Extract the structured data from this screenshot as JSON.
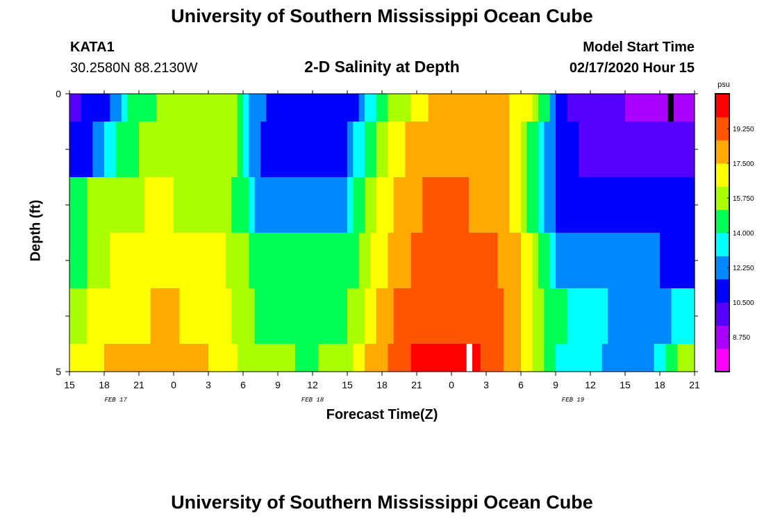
{
  "page": {
    "title_top": "University of Southern Mississippi Ocean Cube",
    "title_bottom": "University of Southern Mississippi Ocean Cube",
    "station": "KATA1",
    "coords": "30.2580N 88.2130W",
    "model_start_label": "Model Start Time",
    "model_start_value": "02/17/2020 Hour 15"
  },
  "colors": {
    "scale": [
      "#ff00ff",
      "#aa00ff",
      "#5500ff",
      "#0000ff",
      "#0088ff",
      "#00ffff",
      "#00ff55",
      "#aaff00",
      "#ffff00",
      "#ffaa00",
      "#ff5500",
      "#ff0000"
    ]
  },
  "chart_data": {
    "type": "heatmap",
    "title": "2-D Salinity at Depth",
    "xlabel": "Forecast Time(Z)",
    "ylabel": "Depth (ft)",
    "x_range": [
      0,
      54
    ],
    "y_range": [
      0,
      5
    ],
    "x_tick_labels": [
      "15",
      "18",
      "21",
      "0",
      "3",
      "6",
      "9",
      "12",
      "15",
      "18",
      "21",
      "0",
      "3",
      "6",
      "9",
      "12",
      "15",
      "18",
      "21"
    ],
    "date_labels": [
      {
        "text": "FEB 17",
        "x": 4
      },
      {
        "text": "FEB 18",
        "x": 21
      },
      {
        "text": "FEB 19",
        "x": 43.5
      }
    ],
    "y_tick_labels": [
      "0",
      "",
      "",
      "",
      "",
      "5"
    ],
    "colorbar": {
      "unit": "psu",
      "min": 7.0,
      "max": 21.0,
      "tick_labels": [
        "19.250",
        "17.500",
        "15.750",
        "14.000",
        "12.250",
        "10.500",
        "8.750"
      ],
      "ticks": [
        19.25,
        17.5,
        15.75,
        14.0,
        12.25,
        10.5,
        8.75
      ]
    },
    "rows": [
      {
        "depth": "0.0-0.5",
        "knots": [
          [
            0,
            10.3
          ],
          [
            3,
            11.0
          ],
          [
            4,
            12.0
          ],
          [
            5,
            13.8
          ],
          [
            6,
            14.8
          ],
          [
            8,
            15.3
          ],
          [
            14,
            15.5
          ],
          [
            15,
            14.5
          ],
          [
            16,
            12.2
          ],
          [
            18,
            11.0
          ],
          [
            24,
            10.5
          ],
          [
            25,
            11.8
          ],
          [
            26,
            13.2
          ],
          [
            27,
            14.8
          ],
          [
            29,
            15.8
          ],
          [
            31,
            17.5
          ],
          [
            33,
            18.3
          ],
          [
            36,
            18.2
          ],
          [
            38,
            17.5
          ],
          [
            40,
            16.2
          ],
          [
            41,
            14.5
          ],
          [
            41.5,
            13.5
          ],
          [
            42,
            11.0
          ],
          [
            45,
            9.5
          ],
          [
            54,
            9.0
          ]
        ]
      },
      {
        "depth": "0.5-1.5",
        "knots": [
          [
            0,
            11.0
          ],
          [
            2,
            11.5
          ],
          [
            3,
            13.0
          ],
          [
            4,
            14.3
          ],
          [
            5,
            15.0
          ],
          [
            9,
            15.6
          ],
          [
            14,
            15.5
          ],
          [
            15,
            14.2
          ],
          [
            16,
            12.0
          ],
          [
            18,
            11.0
          ],
          [
            24,
            11.5
          ],
          [
            25,
            13.5
          ],
          [
            27,
            15.8
          ],
          [
            29,
            17.6
          ],
          [
            31,
            18.5
          ],
          [
            36,
            18.4
          ],
          [
            38,
            17.6
          ],
          [
            39,
            16.0
          ],
          [
            40,
            14.4
          ],
          [
            41,
            12.8
          ],
          [
            42,
            11.5
          ],
          [
            45,
            9.8
          ],
          [
            54,
            9.5
          ]
        ]
      },
      {
        "depth": "1.5-2.5",
        "knots": [
          [
            0,
            14.5
          ],
          [
            2,
            15.5
          ],
          [
            4,
            16.2
          ],
          [
            8,
            16.4
          ],
          [
            13,
            16.1
          ],
          [
            15,
            14.5
          ],
          [
            16,
            12.5
          ],
          [
            18,
            12.0
          ],
          [
            24,
            12.5
          ],
          [
            25,
            14.5
          ],
          [
            27,
            16.8
          ],
          [
            29,
            18.2
          ],
          [
            31,
            18.8
          ],
          [
            36,
            18.6
          ],
          [
            38,
            17.6
          ],
          [
            39,
            16.0
          ],
          [
            40,
            14.5
          ],
          [
            41,
            12.8
          ],
          [
            42,
            11.3
          ],
          [
            45,
            10.8
          ],
          [
            54,
            10.5
          ]
        ]
      },
      {
        "depth": "2.5-3.5",
        "knots": [
          [
            0,
            14.2
          ],
          [
            2,
            15.5
          ],
          [
            4,
            16.6
          ],
          [
            8,
            17.2
          ],
          [
            13,
            16.6
          ],
          [
            15,
            15.5
          ],
          [
            17,
            14.2
          ],
          [
            21,
            14.0
          ],
          [
            24,
            14.5
          ],
          [
            26,
            16.2
          ],
          [
            28,
            18.0
          ],
          [
            30,
            18.8
          ],
          [
            37,
            18.8
          ],
          [
            39,
            17.5
          ],
          [
            40,
            16.0
          ],
          [
            41,
            14.5
          ],
          [
            42,
            12.5
          ],
          [
            45,
            12.0
          ],
          [
            54,
            11.5
          ]
        ]
      },
      {
        "depth": "3.5-4.5",
        "knots": [
          [
            0,
            16.0
          ],
          [
            3,
            16.6
          ],
          [
            5,
            17.2
          ],
          [
            8,
            17.7
          ],
          [
            13,
            16.9
          ],
          [
            15,
            15.8
          ],
          [
            17,
            14.5
          ],
          [
            21,
            14.0
          ],
          [
            24,
            15.0
          ],
          [
            26,
            17.0
          ],
          [
            28,
            18.8
          ],
          [
            30,
            19.5
          ],
          [
            36,
            19.5
          ],
          [
            38,
            18.5
          ],
          [
            39.5,
            17.0
          ],
          [
            40.5,
            15.6
          ],
          [
            42,
            14.2
          ],
          [
            45,
            13.5
          ],
          [
            47,
            12.5
          ],
          [
            51,
            12.0
          ],
          [
            52,
            13.0
          ],
          [
            54,
            13.8
          ]
        ]
      },
      {
        "depth": "4.5-5.0",
        "knots": [
          [
            0,
            16.5
          ],
          [
            3,
            17.5
          ],
          [
            5,
            18.0
          ],
          [
            9,
            18.3
          ],
          [
            14,
            17.0
          ],
          [
            15,
            16.0
          ],
          [
            17,
            15.5
          ],
          [
            21,
            15.0
          ],
          [
            24,
            15.8
          ],
          [
            26,
            17.8
          ],
          [
            28,
            19.0
          ],
          [
            30,
            20.0
          ],
          [
            35,
            20.0
          ],
          [
            37,
            19.0
          ],
          [
            39,
            17.5
          ],
          [
            40,
            16.0
          ],
          [
            41,
            15.0
          ],
          [
            42,
            14.0
          ],
          [
            45,
            13.2
          ],
          [
            47,
            12.5
          ],
          [
            50,
            12.0
          ],
          [
            51,
            13.5
          ],
          [
            52,
            15.0
          ],
          [
            54,
            16.0
          ]
        ]
      }
    ],
    "markers": [
      {
        "row": 0,
        "x_start": 51.7,
        "x_end": 52.2,
        "color": "#000000"
      },
      {
        "row": 5,
        "x_start": 34.3,
        "x_end": 34.8,
        "color": "#ffffff"
      }
    ]
  }
}
